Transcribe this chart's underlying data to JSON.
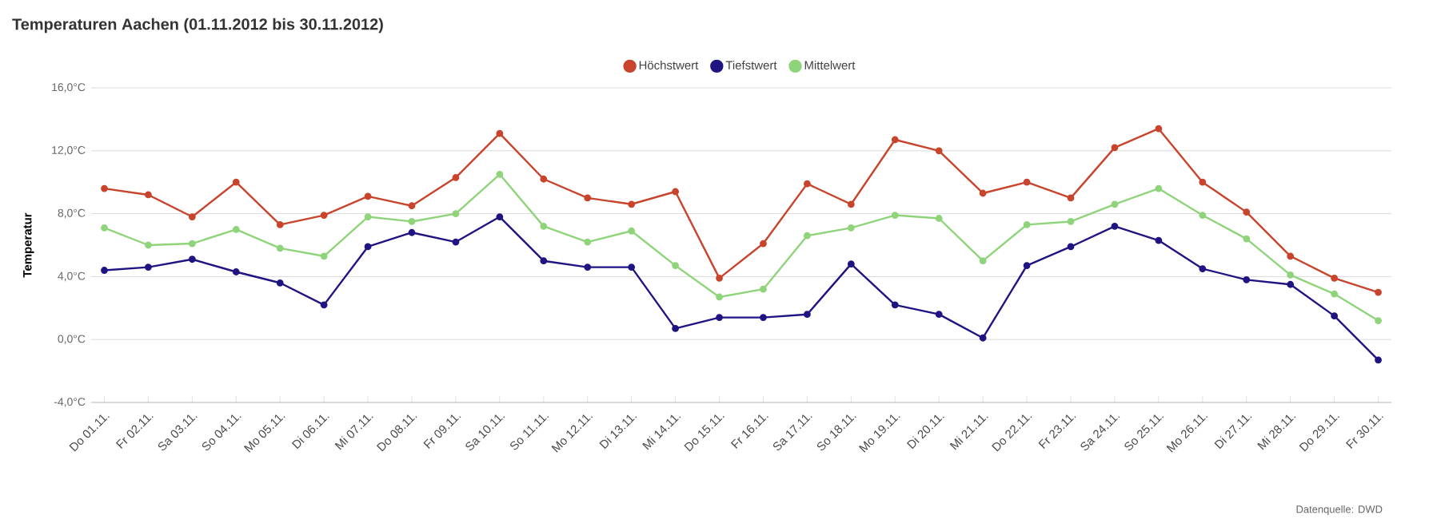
{
  "chart_data": {
    "type": "line",
    "title": "Temperaturen Aachen (01.11.2012 bis 30.11.2012)",
    "ylabel": "Temperatur",
    "categories": [
      "Do 01.11.",
      "Fr 02.11.",
      "Sa 03.11.",
      "So 04.11.",
      "Mo 05.11.",
      "Di 06.11.",
      "Mi 07.11.",
      "Do 08.11.",
      "Fr 09.11.",
      "Sa 10.11.",
      "So 11.11.",
      "Mo 12.11.",
      "Di 13.11.",
      "Mi 14.11.",
      "Do 15.11.",
      "Fr 16.11.",
      "Sa 17.11.",
      "So 18.11.",
      "Mo 19.11.",
      "Di 20.11.",
      "Mi 21.11.",
      "Do 22.11.",
      "Fr 23.11.",
      "Sa 24.11.",
      "So 25.11.",
      "Mo 26.11.",
      "Di 27.11.",
      "Mi 28.11.",
      "Do 29.11.",
      "Fr 30.11."
    ],
    "series": [
      {
        "name": "Höchstwert",
        "color": "#c8442c",
        "values": [
          9.6,
          9.2,
          7.8,
          10.0,
          7.3,
          7.9,
          9.1,
          8.5,
          10.3,
          13.1,
          10.2,
          9.0,
          8.6,
          9.4,
          3.9,
          6.1,
          9.9,
          8.6,
          12.7,
          12.0,
          9.3,
          10.0,
          9.0,
          12.2,
          13.4,
          10.0,
          8.1,
          5.3,
          3.9,
          3.0
        ]
      },
      {
        "name": "Tiefstwert",
        "color": "#1f1482",
        "values": [
          4.4,
          4.6,
          5.1,
          4.3,
          3.6,
          2.2,
          5.9,
          6.8,
          6.2,
          7.8,
          5.0,
          4.6,
          4.6,
          0.7,
          1.4,
          1.4,
          1.6,
          4.8,
          2.2,
          1.6,
          0.1,
          4.7,
          5.9,
          7.2,
          6.3,
          4.5,
          3.8,
          3.5,
          1.5,
          -1.3
        ]
      },
      {
        "name": "Mittelwert",
        "color": "#8fd47a",
        "values": [
          7.1,
          6.0,
          6.1,
          7.0,
          5.8,
          5.3,
          7.8,
          7.5,
          8.0,
          10.5,
          7.2,
          6.2,
          6.9,
          4.7,
          2.7,
          3.2,
          6.6,
          7.1,
          7.9,
          7.7,
          5.0,
          7.3,
          7.5,
          8.6,
          9.6,
          7.9,
          6.4,
          4.1,
          2.9,
          1.2
        ]
      }
    ],
    "ylim": [
      -4,
      16
    ],
    "yticks": [
      {
        "value": -4,
        "label": "-4,0°C"
      },
      {
        "value": 0,
        "label": "0,0°C"
      },
      {
        "value": 4,
        "label": "4,0°C"
      },
      {
        "value": 8,
        "label": "8,0°C"
      },
      {
        "value": 12,
        "label": "12,0°C"
      },
      {
        "value": 16,
        "label": "16,0°C"
      }
    ],
    "grid": "y",
    "legend": "top",
    "marker": "circle",
    "line_style": "solid",
    "annotations": [
      "Datenquelle: DWD"
    ]
  }
}
